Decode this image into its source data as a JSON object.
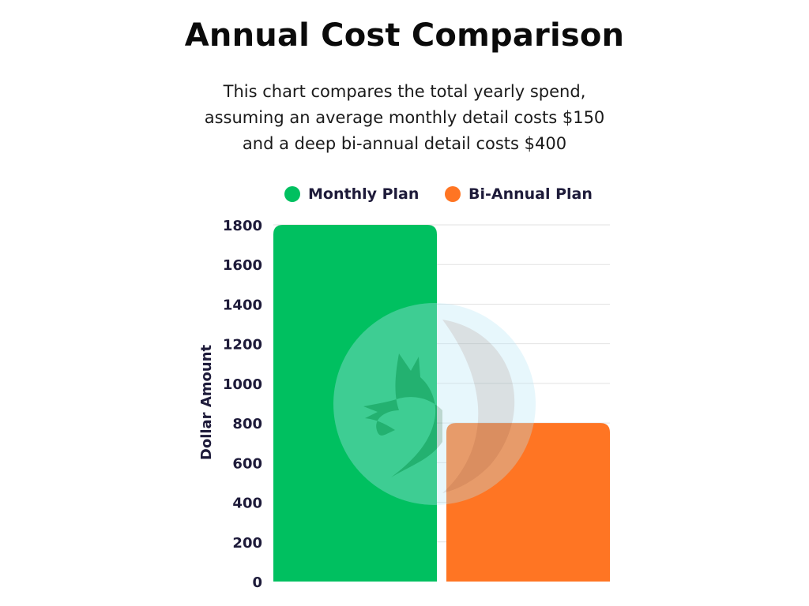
{
  "chart_data": {
    "type": "bar",
    "title": "Annual Cost Comparison",
    "subtitle_lines": [
      "This chart compares the total yearly spend,",
      "assuming an average monthly detail costs $150",
      "and a deep bi-annual detail costs $400"
    ],
    "xlabel": "",
    "ylabel": "Dollar Amount",
    "ylim": [
      0,
      1800
    ],
    "y_ticks": [
      "0",
      "200",
      "400",
      "600",
      "800",
      "1000",
      "1200",
      "1400",
      "1600",
      "1800"
    ],
    "grid": true,
    "legend_position": "top",
    "series": [
      {
        "name": "Monthly Plan",
        "value": 1800,
        "color": "#00c060"
      },
      {
        "name": "Bi-Annual Plan",
        "value": 800,
        "color": "#ff7523"
      }
    ]
  },
  "watermark": {
    "icon": "dragon-logo"
  }
}
